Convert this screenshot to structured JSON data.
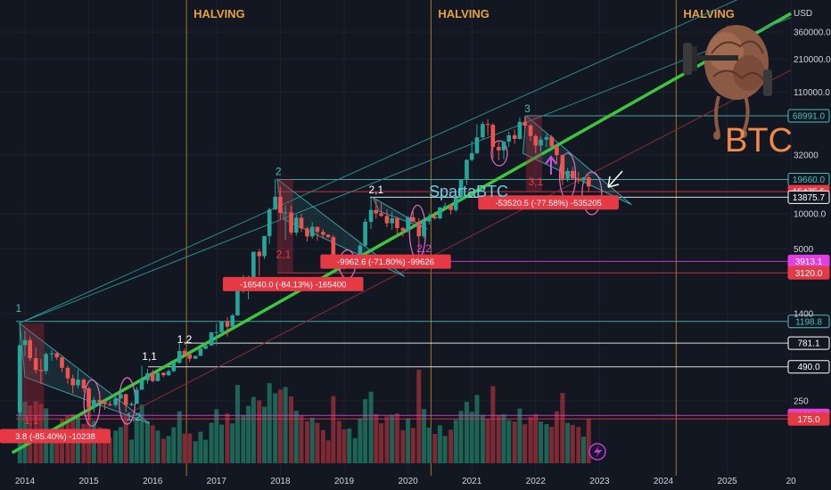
{
  "chart_data": {
    "type": "candlestick",
    "symbol": "BTC",
    "author": "SpartaBTC",
    "currency": "USD",
    "scale": "log",
    "ylim": [
      90,
      600000
    ],
    "x_ticks": [
      "2014",
      "2015",
      "2016",
      "2017",
      "2018",
      "2019",
      "2020",
      "2021",
      "2022",
      "2023",
      "2024",
      "2025",
      "20"
    ],
    "y_ticks": [
      250,
      1400,
      5000,
      10000,
      32000,
      110000,
      210000,
      360000
    ],
    "y_tick_labels": [
      "250",
      "1400",
      "5000",
      "10000.0",
      "32000",
      "110000.0",
      "210000.0",
      "360000.0"
    ],
    "halvings": [
      {
        "label": "HALVING",
        "date": 2016.53
      },
      {
        "label": "HALVING",
        "date": 2020.36
      },
      {
        "label": "HALVING",
        "date": 2024.2
      }
    ],
    "price_levels": [
      {
        "value": 68991.0,
        "label": "68991.0",
        "color": "#4fbdba",
        "style": "outline"
      },
      {
        "value": 19660.0,
        "label": "19660.0",
        "color": "#4fbdba",
        "style": "outline"
      },
      {
        "value": 15475.5,
        "label": "15475.5",
        "color": "#e53945",
        "style": "filled"
      },
      {
        "value": 13875.7,
        "label": "13875.7",
        "color": "#ffffff",
        "style": "outline"
      },
      {
        "value": 3913.1,
        "label": "3913.1",
        "color": "#e040e0",
        "style": "filled"
      },
      {
        "value": 3120.0,
        "label": "3120.0",
        "color": "#e53945",
        "style": "filled"
      },
      {
        "value": 1198.8,
        "label": "1198.8",
        "color": "#4fbdba",
        "style": "outline"
      },
      {
        "value": 781.1,
        "label": "781.1",
        "color": "#ffffff",
        "style": "outline"
      },
      {
        "value": 490.0,
        "label": "490.0",
        "color": "#ffffff",
        "style": "outline"
      },
      {
        "value": 188.1,
        "label": "188.1",
        "color": "#e040e0",
        "style": "filled"
      },
      {
        "value": 175.0,
        "label": "175.0",
        "color": "#e53945",
        "style": "filled"
      }
    ],
    "drawdowns": [
      {
        "label": "3.8 (-85.40%) -10238",
        "date": 2014.15,
        "price": 125
      },
      {
        "label": "-16540.0 (-84.13%) -165400",
        "date": 2018.2,
        "price": 2500
      },
      {
        "label": "-9962.6 (-71.80%) -99626",
        "date": 2019.65,
        "price": 3900
      },
      {
        "label": "-53520.5 (-77.58%) -535205",
        "date": 2022.2,
        "price": 12500
      }
    ],
    "waves": [
      {
        "label": "1",
        "date": 2013.9,
        "price": 1450,
        "color": "#4fbdba"
      },
      {
        "label": "1,1",
        "date": 2014.1,
        "price": 158,
        "color": "#e53945"
      },
      {
        "label": "1,2",
        "date": 2015.7,
        "price": 170,
        "color": "#4fbdba"
      },
      {
        "label": "1,1",
        "date": 2015.95,
        "price": 560,
        "color": "#ffffff"
      },
      {
        "label": "1,2",
        "date": 2016.5,
        "price": 780,
        "color": "#ffffff"
      },
      {
        "label": "2",
        "date": 2017.97,
        "price": 21500,
        "color": "#4fbdba"
      },
      {
        "label": "2,1",
        "date": 2018.05,
        "price": 4200,
        "color": "#e53945"
      },
      {
        "label": "2,1",
        "date": 2019.5,
        "price": 15000,
        "color": "#ffffff"
      },
      {
        "label": "2,2",
        "date": 2020.25,
        "price": 4700,
        "color": "#e040e0"
      },
      {
        "label": "3",
        "date": 2021.87,
        "price": 74000,
        "color": "#4fbdba"
      },
      {
        "label": "3,1",
        "date": 2022.0,
        "price": 17500,
        "color": "#e53945"
      }
    ],
    "monthly_candles": [
      {
        "t": 2013.92,
        "o": 200,
        "h": 1150,
        "l": 190,
        "c": 750
      },
      {
        "t": 2014.0,
        "o": 750,
        "h": 1000,
        "l": 600,
        "c": 830
      },
      {
        "t": 2014.08,
        "o": 830,
        "h": 880,
        "l": 550,
        "c": 580
      },
      {
        "t": 2014.17,
        "o": 580,
        "h": 720,
        "l": 430,
        "c": 460
      },
      {
        "t": 2014.25,
        "o": 460,
        "h": 570,
        "l": 350,
        "c": 450
      },
      {
        "t": 2014.33,
        "o": 450,
        "h": 650,
        "l": 420,
        "c": 630
      },
      {
        "t": 2014.42,
        "o": 630,
        "h": 680,
        "l": 550,
        "c": 640
      },
      {
        "t": 2014.5,
        "o": 640,
        "h": 660,
        "l": 560,
        "c": 590
      },
      {
        "t": 2014.58,
        "o": 590,
        "h": 600,
        "l": 440,
        "c": 480
      },
      {
        "t": 2014.67,
        "o": 480,
        "h": 500,
        "l": 350,
        "c": 390
      },
      {
        "t": 2014.75,
        "o": 390,
        "h": 420,
        "l": 290,
        "c": 340
      },
      {
        "t": 2014.83,
        "o": 340,
        "h": 460,
        "l": 320,
        "c": 380
      },
      {
        "t": 2014.92,
        "o": 380,
        "h": 390,
        "l": 300,
        "c": 320
      },
      {
        "t": 2015.0,
        "o": 320,
        "h": 330,
        "l": 170,
        "c": 220
      },
      {
        "t": 2015.08,
        "o": 220,
        "h": 270,
        "l": 200,
        "c": 255
      },
      {
        "t": 2015.17,
        "o": 255,
        "h": 300,
        "l": 240,
        "c": 245
      },
      {
        "t": 2015.25,
        "o": 245,
        "h": 260,
        "l": 210,
        "c": 235
      },
      {
        "t": 2015.33,
        "o": 235,
        "h": 250,
        "l": 225,
        "c": 230
      },
      {
        "t": 2015.42,
        "o": 230,
        "h": 265,
        "l": 220,
        "c": 262
      },
      {
        "t": 2015.5,
        "o": 262,
        "h": 320,
        "l": 255,
        "c": 285
      },
      {
        "t": 2015.58,
        "o": 285,
        "h": 290,
        "l": 200,
        "c": 230
      },
      {
        "t": 2015.67,
        "o": 230,
        "h": 245,
        "l": 225,
        "c": 236
      },
      {
        "t": 2015.75,
        "o": 236,
        "h": 330,
        "l": 235,
        "c": 312
      },
      {
        "t": 2015.83,
        "o": 312,
        "h": 500,
        "l": 310,
        "c": 375
      },
      {
        "t": 2015.92,
        "o": 375,
        "h": 470,
        "l": 350,
        "c": 430
      },
      {
        "t": 2016.0,
        "o": 430,
        "h": 460,
        "l": 360,
        "c": 370
      },
      {
        "t": 2016.08,
        "o": 370,
        "h": 440,
        "l": 365,
        "c": 435
      },
      {
        "t": 2016.17,
        "o": 435,
        "h": 440,
        "l": 400,
        "c": 415
      },
      {
        "t": 2016.25,
        "o": 415,
        "h": 465,
        "l": 410,
        "c": 450
      },
      {
        "t": 2016.33,
        "o": 450,
        "h": 550,
        "l": 440,
        "c": 530
      },
      {
        "t": 2016.42,
        "o": 530,
        "h": 780,
        "l": 520,
        "c": 670
      },
      {
        "t": 2016.5,
        "o": 670,
        "h": 700,
        "l": 600,
        "c": 625
      },
      {
        "t": 2016.58,
        "o": 625,
        "h": 630,
        "l": 540,
        "c": 575
      },
      {
        "t": 2016.67,
        "o": 575,
        "h": 610,
        "l": 570,
        "c": 608
      },
      {
        "t": 2016.75,
        "o": 608,
        "h": 720,
        "l": 605,
        "c": 700
      },
      {
        "t": 2016.83,
        "o": 700,
        "h": 750,
        "l": 690,
        "c": 745
      },
      {
        "t": 2016.92,
        "o": 745,
        "h": 975,
        "l": 740,
        "c": 965
      },
      {
        "t": 2017.0,
        "o": 965,
        "h": 1150,
        "l": 750,
        "c": 970
      },
      {
        "t": 2017.08,
        "o": 970,
        "h": 1200,
        "l": 930,
        "c": 1190
      },
      {
        "t": 2017.17,
        "o": 1190,
        "h": 1300,
        "l": 890,
        "c": 1080
      },
      {
        "t": 2017.25,
        "o": 1080,
        "h": 1400,
        "l": 1070,
        "c": 1350
      },
      {
        "t": 2017.33,
        "o": 1350,
        "h": 2700,
        "l": 1340,
        "c": 2300
      },
      {
        "t": 2017.42,
        "o": 2300,
        "h": 3000,
        "l": 2100,
        "c": 2480
      },
      {
        "t": 2017.5,
        "o": 2480,
        "h": 2950,
        "l": 1850,
        "c": 2880
      },
      {
        "t": 2017.58,
        "o": 2880,
        "h": 4750,
        "l": 2700,
        "c": 4730
      },
      {
        "t": 2017.67,
        "o": 4730,
        "h": 5000,
        "l": 2950,
        "c": 4340
      },
      {
        "t": 2017.75,
        "o": 4340,
        "h": 6470,
        "l": 4100,
        "c": 6450
      },
      {
        "t": 2017.83,
        "o": 6450,
        "h": 11300,
        "l": 5500,
        "c": 10900
      },
      {
        "t": 2017.92,
        "o": 10900,
        "h": 19800,
        "l": 10800,
        "c": 14000
      },
      {
        "t": 2018.0,
        "o": 14000,
        "h": 17200,
        "l": 9000,
        "c": 10200
      },
      {
        "t": 2018.08,
        "o": 10200,
        "h": 11800,
        "l": 6000,
        "c": 10300
      },
      {
        "t": 2018.17,
        "o": 10300,
        "h": 11700,
        "l": 6600,
        "c": 6900
      },
      {
        "t": 2018.25,
        "o": 6900,
        "h": 9800,
        "l": 6500,
        "c": 9250
      },
      {
        "t": 2018.33,
        "o": 9250,
        "h": 9990,
        "l": 7000,
        "c": 7500
      },
      {
        "t": 2018.42,
        "o": 7500,
        "h": 7760,
        "l": 5800,
        "c": 6400
      },
      {
        "t": 2018.5,
        "o": 6400,
        "h": 8500,
        "l": 6100,
        "c": 7730
      },
      {
        "t": 2018.58,
        "o": 7730,
        "h": 7760,
        "l": 5900,
        "c": 7000
      },
      {
        "t": 2018.67,
        "o": 7000,
        "h": 7400,
        "l": 6100,
        "c": 6620
      },
      {
        "t": 2018.75,
        "o": 6620,
        "h": 6700,
        "l": 6200,
        "c": 6320
      },
      {
        "t": 2018.83,
        "o": 6320,
        "h": 6570,
        "l": 3700,
        "c": 4040
      },
      {
        "t": 2018.92,
        "o": 4040,
        "h": 4300,
        "l": 3200,
        "c": 3740
      },
      {
        "t": 2019.0,
        "o": 3740,
        "h": 4100,
        "l": 3350,
        "c": 3460
      },
      {
        "t": 2019.08,
        "o": 3460,
        "h": 4200,
        "l": 3400,
        "c": 3810
      },
      {
        "t": 2019.17,
        "o": 3810,
        "h": 4100,
        "l": 3700,
        "c": 4100
      },
      {
        "t": 2019.25,
        "o": 4100,
        "h": 5600,
        "l": 4050,
        "c": 5350
      },
      {
        "t": 2019.33,
        "o": 5350,
        "h": 9100,
        "l": 5300,
        "c": 8550
      },
      {
        "t": 2019.42,
        "o": 8550,
        "h": 13800,
        "l": 7400,
        "c": 10800
      },
      {
        "t": 2019.5,
        "o": 10800,
        "h": 13200,
        "l": 9100,
        "c": 10080
      },
      {
        "t": 2019.58,
        "o": 10080,
        "h": 12300,
        "l": 9400,
        "c": 9600
      },
      {
        "t": 2019.67,
        "o": 9600,
        "h": 10900,
        "l": 7700,
        "c": 8300
      },
      {
        "t": 2019.75,
        "o": 8300,
        "h": 10500,
        "l": 7300,
        "c": 9150
      },
      {
        "t": 2019.83,
        "o": 9150,
        "h": 9500,
        "l": 6500,
        "c": 7550
      },
      {
        "t": 2019.92,
        "o": 7550,
        "h": 7750,
        "l": 6400,
        "c": 7200
      },
      {
        "t": 2020.0,
        "o": 7200,
        "h": 9550,
        "l": 6900,
        "c": 9350
      },
      {
        "t": 2020.08,
        "o": 9350,
        "h": 10500,
        "l": 8450,
        "c": 8550
      },
      {
        "t": 2020.17,
        "o": 8550,
        "h": 9200,
        "l": 3850,
        "c": 6420
      },
      {
        "t": 2020.25,
        "o": 6420,
        "h": 9450,
        "l": 6150,
        "c": 8630
      },
      {
        "t": 2020.33,
        "o": 8630,
        "h": 10100,
        "l": 8100,
        "c": 9450
      },
      {
        "t": 2020.42,
        "o": 9450,
        "h": 10400,
        "l": 8950,
        "c": 9140
      },
      {
        "t": 2020.5,
        "o": 9140,
        "h": 11450,
        "l": 8950,
        "c": 11350
      },
      {
        "t": 2020.58,
        "o": 11350,
        "h": 12480,
        "l": 11000,
        "c": 11650
      },
      {
        "t": 2020.67,
        "o": 11650,
        "h": 12050,
        "l": 9900,
        "c": 10780
      },
      {
        "t": 2020.75,
        "o": 10780,
        "h": 14100,
        "l": 10380,
        "c": 13800
      },
      {
        "t": 2020.83,
        "o": 13800,
        "h": 19850,
        "l": 13200,
        "c": 19700
      },
      {
        "t": 2020.92,
        "o": 19700,
        "h": 29300,
        "l": 17600,
        "c": 28990
      },
      {
        "t": 2021.0,
        "o": 28990,
        "h": 41950,
        "l": 28130,
        "c": 33100
      },
      {
        "t": 2021.08,
        "o": 33100,
        "h": 58300,
        "l": 32400,
        "c": 45200
      },
      {
        "t": 2021.17,
        "o": 45200,
        "h": 61800,
        "l": 43000,
        "c": 58800
      },
      {
        "t": 2021.25,
        "o": 58800,
        "h": 64800,
        "l": 47000,
        "c": 57700
      },
      {
        "t": 2021.33,
        "o": 57700,
        "h": 59600,
        "l": 30000,
        "c": 37300
      },
      {
        "t": 2021.42,
        "o": 37300,
        "h": 41300,
        "l": 28800,
        "c": 35000
      },
      {
        "t": 2021.5,
        "o": 35000,
        "h": 42400,
        "l": 29300,
        "c": 41500
      },
      {
        "t": 2021.58,
        "o": 41500,
        "h": 50500,
        "l": 37300,
        "c": 47100
      },
      {
        "t": 2021.67,
        "o": 47100,
        "h": 52900,
        "l": 39600,
        "c": 43800
      },
      {
        "t": 2021.75,
        "o": 43800,
        "h": 66900,
        "l": 43300,
        "c": 61300
      },
      {
        "t": 2021.83,
        "o": 61300,
        "h": 69000,
        "l": 53300,
        "c": 57000
      },
      {
        "t": 2021.92,
        "o": 57000,
        "h": 59100,
        "l": 42000,
        "c": 46300
      },
      {
        "t": 2022.0,
        "o": 46300,
        "h": 47900,
        "l": 33000,
        "c": 38500
      },
      {
        "t": 2022.08,
        "o": 38500,
        "h": 45800,
        "l": 34300,
        "c": 43200
      },
      {
        "t": 2022.17,
        "o": 43200,
        "h": 48200,
        "l": 37200,
        "c": 45500
      },
      {
        "t": 2022.25,
        "o": 45500,
        "h": 47400,
        "l": 37700,
        "c": 37700
      },
      {
        "t": 2022.33,
        "o": 37700,
        "h": 40000,
        "l": 26700,
        "c": 31800
      },
      {
        "t": 2022.42,
        "o": 31800,
        "h": 32400,
        "l": 17600,
        "c": 19900
      },
      {
        "t": 2022.5,
        "o": 19900,
        "h": 24700,
        "l": 18800,
        "c": 23300
      },
      {
        "t": 2022.58,
        "o": 23300,
        "h": 25200,
        "l": 19600,
        "c": 20050
      },
      {
        "t": 2022.67,
        "o": 20050,
        "h": 22800,
        "l": 18150,
        "c": 19400
      },
      {
        "t": 2022.75,
        "o": 19400,
        "h": 20500,
        "l": 18200,
        "c": 20500
      },
      {
        "t": 2022.83,
        "o": 20500,
        "h": 21400,
        "l": 15500,
        "c": 17150
      }
    ]
  }
}
